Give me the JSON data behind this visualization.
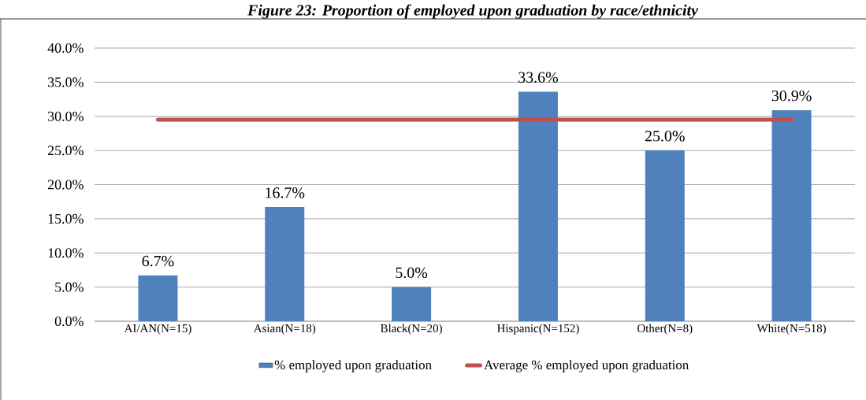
{
  "chart_data": {
    "type": "bar",
    "title": "Figure 23: Proportion of employed upon graduation by race/ethnicity",
    "categories": [
      "AI/AN(N=15)",
      "Asian(N=18)",
      "Black(N=20)",
      "Hispanic(N=152)",
      "Other(N=8)",
      "White(N=518)"
    ],
    "series": [
      {
        "name": "% employed upon graduation",
        "color": "#4f81bd",
        "values": [
          6.7,
          16.7,
          5.0,
          33.6,
          25.0,
          30.9
        ],
        "value_labels": [
          "6.7%",
          "16.7%",
          "5.0%",
          "33.6%",
          "25.0%",
          "30.9%"
        ]
      },
      {
        "name": "Average % employed upon graduation",
        "type": "line",
        "color": "#c0504d",
        "values": [
          29.5,
          29.5,
          29.5,
          29.5,
          29.5,
          29.5
        ]
      }
    ],
    "ylim": [
      0,
      40
    ],
    "yticks": [
      {
        "value": 0,
        "label": "0.0%"
      },
      {
        "value": 5,
        "label": "5.0%"
      },
      {
        "value": 10,
        "label": "10.0%"
      },
      {
        "value": 15,
        "label": "15.0%"
      },
      {
        "value": 20,
        "label": "20.0%"
      },
      {
        "value": 25,
        "label": "25.0%"
      },
      {
        "value": 30,
        "label": "30.0%"
      },
      {
        "value": 35,
        "label": "35.0%"
      },
      {
        "value": 40,
        "label": "40.0%"
      }
    ],
    "grid": "y",
    "legend": "bottom",
    "marker": "none",
    "line_style": "solid"
  }
}
